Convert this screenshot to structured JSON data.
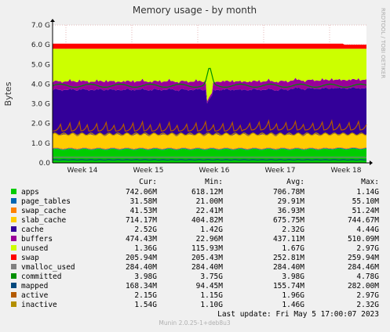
{
  "chart_data": {
    "type": "area",
    "title": "Memory usage - by month",
    "ylabel": "Bytes",
    "ylim": [
      0,
      7.0
    ],
    "yunit": "G",
    "yticks": [
      "0.0",
      "1.0 G",
      "2.0 G",
      "3.0 G",
      "4.0 G",
      "5.0 G",
      "6.0 G",
      "7.0 G"
    ],
    "x_labels": [
      "Week 14",
      "Week 15",
      "Week 16",
      "Week 17",
      "Week 18"
    ],
    "side_label": "RRDTOOL / TOBI OETIKER",
    "grid": true,
    "legend_header": [
      "Cur:",
      "Min:",
      "Avg:",
      "Max:"
    ],
    "series": [
      {
        "name": "apps",
        "color": "#00cc00",
        "cur": "742.06M",
        "min": "618.12M",
        "avg": "706.78M",
        "max": "1.14G"
      },
      {
        "name": "page_tables",
        "color": "#0066b3",
        "cur": "31.58M",
        "min": "21.00M",
        "avg": "29.91M",
        "max": "55.10M"
      },
      {
        "name": "swap_cache",
        "color": "#ff8000",
        "cur": "41.53M",
        "min": "22.41M",
        "avg": "36.93M",
        "max": "51.24M"
      },
      {
        "name": "slab_cache",
        "color": "#ffcc00",
        "cur": "714.17M",
        "min": "404.82M",
        "avg": "675.75M",
        "max": "744.67M"
      },
      {
        "name": "cache",
        "color": "#330099",
        "cur": "2.52G",
        "min": "1.42G",
        "avg": "2.32G",
        "max": "4.44G"
      },
      {
        "name": "buffers",
        "color": "#990099",
        "cur": "474.43M",
        "min": "22.96M",
        "avg": "437.11M",
        "max": "510.09M"
      },
      {
        "name": "unused",
        "color": "#ccff00",
        "cur": "1.36G",
        "min": "115.93M",
        "avg": "1.67G",
        "max": "2.97G"
      },
      {
        "name": "swap",
        "color": "#ff0000",
        "cur": "205.94M",
        "min": "205.43M",
        "avg": "252.81M",
        "max": "259.94M"
      },
      {
        "name": "vmalloc_used",
        "color": "#808080",
        "cur": "284.40M",
        "min": "284.40M",
        "avg": "284.40M",
        "max": "284.46M"
      },
      {
        "name": "committed",
        "color": "#008f00",
        "cur": "3.98G",
        "min": "3.75G",
        "avg": "3.98G",
        "max": "4.78G"
      },
      {
        "name": "mapped",
        "color": "#00487d",
        "cur": "168.34M",
        "min": "94.45M",
        "avg": "155.74M",
        "max": "282.00M"
      },
      {
        "name": "active",
        "color": "#b35a00",
        "cur": "2.15G",
        "min": "1.15G",
        "avg": "1.96G",
        "max": "2.97G"
      },
      {
        "name": "inactive",
        "color": "#b38f00",
        "cur": "1.54G",
        "min": "1.10G",
        "avg": "1.46G",
        "max": "2.32G"
      }
    ],
    "last_update": "Last update:  Fri May  5 17:00:07 2023",
    "footer": "Munin 2.0.25-1+deb8u3"
  }
}
